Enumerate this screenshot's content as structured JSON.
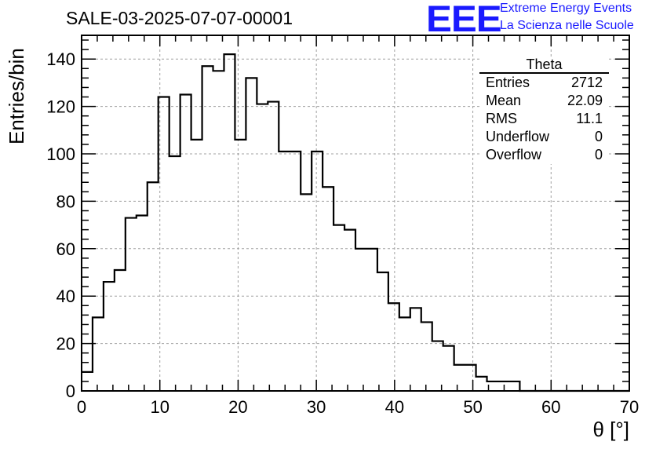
{
  "title": "SALE-03-2025-07-07-00001",
  "logo": {
    "mark": "EEE",
    "line1": "Extreme Energy Events",
    "line2": "La Scienza nelle Scuole",
    "color": "#1a1aff"
  },
  "stats": {
    "title": "Theta",
    "rows": [
      {
        "label": "Entries",
        "value": "2712"
      },
      {
        "label": "Mean",
        "value": "22.09"
      },
      {
        "label": "RMS",
        "value": "11.1"
      },
      {
        "label": "Underflow",
        "value": "0"
      },
      {
        "label": "Overflow",
        "value": "0"
      }
    ]
  },
  "chart_data": {
    "type": "histogram",
    "xlabel": "θ [°]",
    "ylabel": "Entries/bin",
    "xlim": [
      0,
      70
    ],
    "ylim": [
      0,
      150
    ],
    "bin_width": 1.4,
    "values": [
      8,
      31,
      46,
      51,
      73,
      74,
      88,
      124,
      99,
      125,
      106,
      137,
      135,
      142,
      106,
      132,
      121,
      122,
      101,
      101,
      83,
      101,
      86,
      70,
      68,
      60,
      60,
      50,
      37,
      31,
      35,
      29,
      21,
      19,
      11,
      11,
      6,
      4,
      4,
      4,
      0,
      0,
      0,
      0,
      0,
      0,
      0,
      0,
      0,
      0
    ],
    "x_ticks": [
      0,
      10,
      20,
      30,
      40,
      50,
      60,
      70
    ],
    "y_ticks": [
      0,
      20,
      40,
      60,
      80,
      100,
      120,
      140
    ],
    "grid": true,
    "line_color": "#000000"
  }
}
